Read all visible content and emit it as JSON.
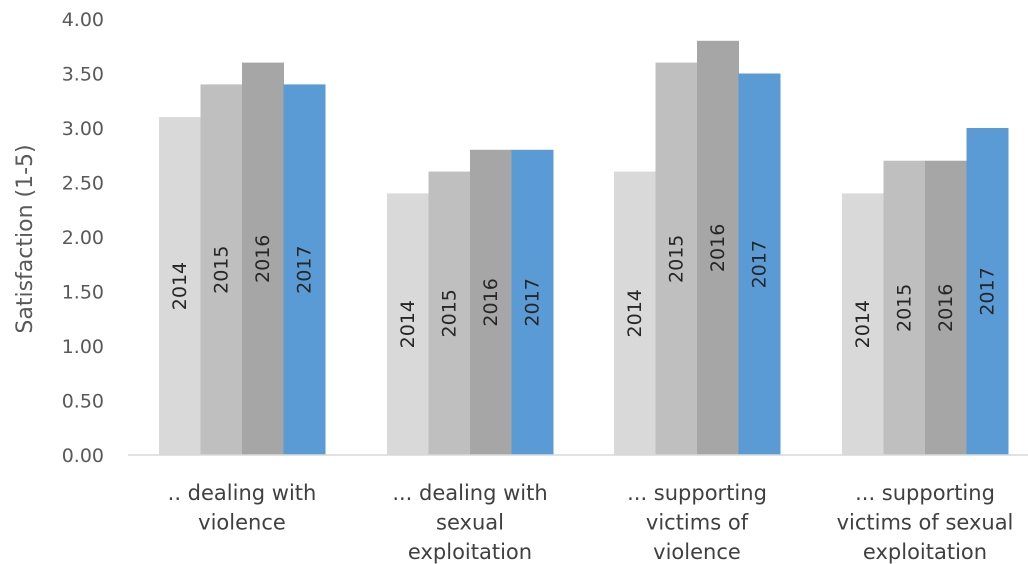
{
  "chart_data": {
    "type": "bar",
    "title": "",
    "xlabel": "",
    "ylabel": "Satisfaction (1-5)",
    "ylim": [
      0,
      4
    ],
    "yticks": [
      "0.00",
      "0.50",
      "1.00",
      "1.50",
      "2.00",
      "2.50",
      "3.00",
      "3.50",
      "4.00"
    ],
    "grid": false,
    "legend": "none",
    "categories": [
      [
        ".. dealing with",
        "violence"
      ],
      [
        "... dealing with",
        "sexual",
        "exploitation"
      ],
      [
        "... supporting",
        "victims of",
        "violence"
      ],
      [
        "... supporting",
        "victims of sexual",
        "exploitation"
      ]
    ],
    "series": [
      {
        "name": "2014",
        "color": "#d9d9d9",
        "values": [
          3.1,
          2.4,
          2.6,
          2.4
        ]
      },
      {
        "name": "2015",
        "color": "#bfbfbf",
        "values": [
          3.4,
          2.6,
          3.6,
          2.7
        ]
      },
      {
        "name": "2016",
        "color": "#a6a6a6",
        "values": [
          3.6,
          2.8,
          3.8,
          2.7
        ]
      },
      {
        "name": "2017",
        "color": "#5b9bd5",
        "values": [
          3.4,
          2.8,
          3.5,
          3.0
        ]
      }
    ]
  }
}
